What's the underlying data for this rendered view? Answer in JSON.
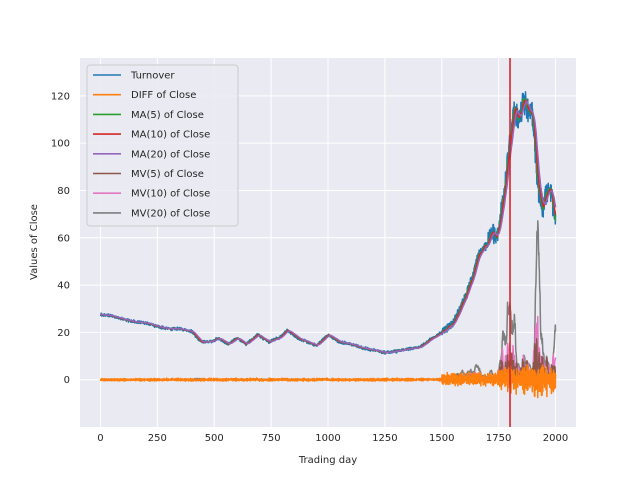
{
  "chart_data": {
    "type": "line",
    "xlabel": "Trading day",
    "ylabel": "Values of Close",
    "xlim": [
      -90,
      2090
    ],
    "ylim": [
      -20,
      136
    ],
    "xticks": [
      0,
      250,
      500,
      750,
      1000,
      1250,
      1500,
      1750,
      2000
    ],
    "yticks": [
      0,
      20,
      40,
      60,
      80,
      100,
      120
    ],
    "grid": true,
    "legend_placement": "top-left",
    "vertical_marker": {
      "x": 1800,
      "color": "#d62728"
    },
    "close_anchors": [
      [
        0,
        27.5
      ],
      [
        50,
        27
      ],
      [
        100,
        25.5
      ],
      [
        150,
        24.5
      ],
      [
        200,
        24
      ],
      [
        250,
        22.5
      ],
      [
        300,
        21.5
      ],
      [
        350,
        21.5
      ],
      [
        400,
        20.5
      ],
      [
        440,
        16
      ],
      [
        480,
        16
      ],
      [
        520,
        17.5
      ],
      [
        560,
        15
      ],
      [
        600,
        17.5
      ],
      [
        640,
        15
      ],
      [
        690,
        19
      ],
      [
        740,
        16
      ],
      [
        790,
        18
      ],
      [
        820,
        21
      ],
      [
        870,
        17.5
      ],
      [
        920,
        15.5
      ],
      [
        950,
        14.5
      ],
      [
        1000,
        19
      ],
      [
        1050,
        16
      ],
      [
        1100,
        15
      ],
      [
        1150,
        13.5
      ],
      [
        1200,
        12.5
      ],
      [
        1250,
        11.5
      ],
      [
        1300,
        12
      ],
      [
        1350,
        13
      ],
      [
        1400,
        13.5
      ],
      [
        1450,
        17
      ],
      [
        1500,
        20
      ],
      [
        1550,
        24
      ],
      [
        1600,
        34
      ],
      [
        1640,
        45
      ],
      [
        1660,
        53
      ],
      [
        1700,
        57
      ],
      [
        1720,
        63
      ],
      [
        1740,
        60
      ],
      [
        1760,
        70
      ],
      [
        1780,
        85
      ],
      [
        1800,
        100
      ],
      [
        1820,
        115
      ],
      [
        1840,
        110
      ],
      [
        1860,
        118
      ],
      [
        1880,
        115
      ],
      [
        1900,
        112
      ],
      [
        1920,
        85
      ],
      [
        1940,
        73
      ],
      [
        1960,
        78
      ],
      [
        1980,
        80
      ],
      [
        2000,
        67
      ]
    ],
    "series": [
      {
        "name": "Turnover",
        "color": "#1f77b4"
      },
      {
        "name": "DIFF of Close",
        "color": "#ff7f0e"
      },
      {
        "name": "MA(5) of Close",
        "color": "#2ca02c"
      },
      {
        "name": "MA(10) of Close",
        "color": "#d62728"
      },
      {
        "name": "MA(20) of Close",
        "color": "#9467bd"
      },
      {
        "name": "MV(5) of Close",
        "color": "#8c564b"
      },
      {
        "name": "MV(10) of Close",
        "color": "#e377c2"
      },
      {
        "name": "MV(20) of Close",
        "color": "#7f7f7f"
      }
    ]
  }
}
